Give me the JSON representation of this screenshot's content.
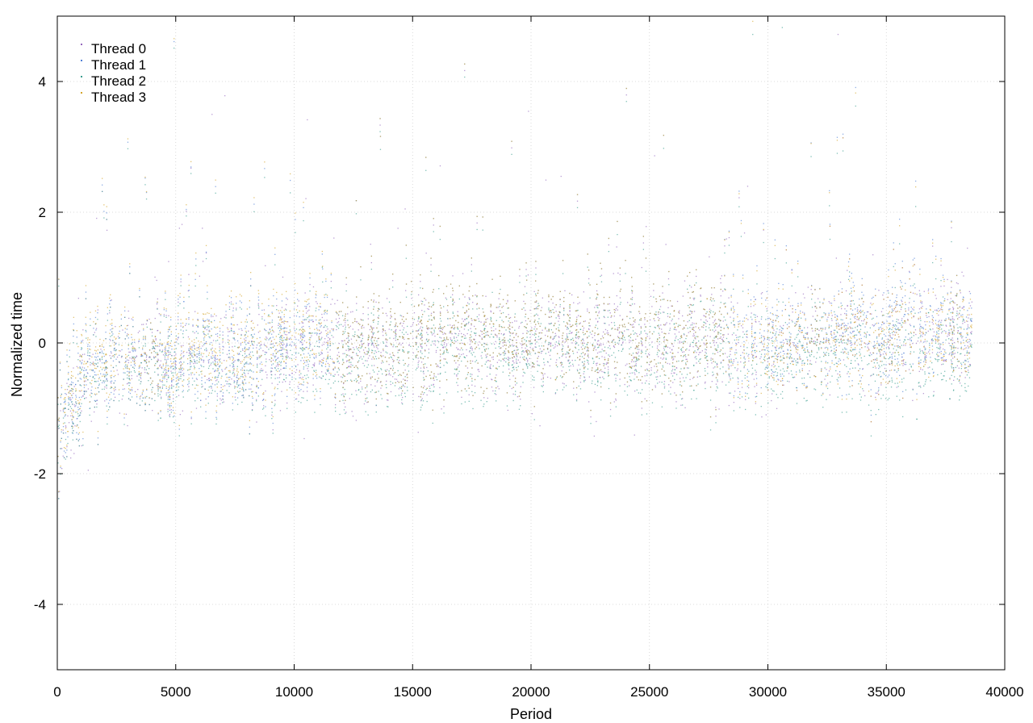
{
  "chart_data": {
    "type": "scatter",
    "xlabel": "Period",
    "ylabel": "Normalized time",
    "xlim": [
      0,
      40000
    ],
    "ylim": [
      -5,
      5
    ],
    "x_ticks": [
      0,
      5000,
      10000,
      15000,
      20000,
      25000,
      30000,
      35000,
      40000
    ],
    "x_tick_labels": [
      "0",
      "5000",
      "10000",
      "15000",
      "20000",
      "25000",
      "30000",
      "35000",
      "40000"
    ],
    "y_ticks": [
      -4,
      -2,
      0,
      2,
      4
    ],
    "y_tick_labels": [
      "-4",
      "-2",
      "0",
      "2",
      "4"
    ],
    "grid": true,
    "legend_position": "top-left",
    "series": [
      {
        "name": "Thread 0",
        "color": "#9467bd",
        "x": [
          0,
          500,
          1000,
          2000,
          4000,
          6000,
          8000,
          10000,
          12000,
          14000,
          16000,
          18000,
          20000,
          22000,
          24000,
          26000,
          28000,
          30000,
          32000,
          34000,
          36000,
          38000,
          38600
        ],
        "y": [
          -1.6,
          -0.9,
          -0.6,
          -0.4,
          -0.3,
          -0.2,
          -0.2,
          -0.1,
          -0.1,
          -0.1,
          0.0,
          0.0,
          0.0,
          0.0,
          0.0,
          0.0,
          0.0,
          0.0,
          0.1,
          0.1,
          0.1,
          0.1,
          0.1
        ]
      },
      {
        "name": "Thread 1",
        "color": "#4f7fd6",
        "x": [
          0,
          500,
          1000,
          2000,
          4000,
          6000,
          8000,
          10000,
          12000,
          14000,
          16000,
          18000,
          20000,
          22000,
          24000,
          26000,
          28000,
          30000,
          32000,
          34000,
          36000,
          38000,
          38600
        ],
        "y": [
          -1.5,
          -0.8,
          -0.5,
          -0.3,
          -0.2,
          -0.2,
          -0.1,
          0.0,
          0.0,
          0.0,
          0.1,
          0.1,
          0.1,
          0.1,
          0.1,
          0.1,
          0.1,
          0.1,
          0.1,
          0.2,
          0.2,
          0.2,
          0.3
        ]
      },
      {
        "name": "Thread 2",
        "color": "#3a9e8f",
        "x": [
          0,
          500,
          1000,
          2000,
          4000,
          6000,
          8000,
          10000,
          12000,
          14000,
          16000,
          18000,
          20000,
          22000,
          24000,
          26000,
          28000,
          30000,
          32000,
          34000,
          36000,
          38000,
          38600
        ],
        "y": [
          -1.6,
          -0.9,
          -0.6,
          -0.4,
          -0.3,
          -0.3,
          -0.2,
          -0.2,
          -0.2,
          -0.2,
          -0.1,
          -0.1,
          -0.1,
          -0.1,
          -0.1,
          -0.1,
          -0.1,
          -0.2,
          -0.1,
          -0.1,
          -0.2,
          -0.1,
          -0.1
        ]
      },
      {
        "name": "Thread 3",
        "color": "#d4a52a",
        "x": [
          0,
          500,
          1000,
          2000,
          4000,
          6000,
          8000,
          10000,
          12000,
          14000,
          16000,
          18000,
          20000,
          22000,
          24000,
          26000,
          28000,
          30000,
          32000,
          34000,
          36000,
          38000,
          38600
        ],
        "y": [
          -1.5,
          -0.7,
          -0.4,
          -0.2,
          -0.2,
          -0.1,
          0.0,
          0.1,
          0.0,
          0.0,
          0.1,
          0.1,
          0.1,
          0.1,
          0.1,
          0.1,
          0.1,
          0.0,
          0.1,
          0.1,
          0.1,
          0.2,
          0.2
        ]
      }
    ]
  }
}
